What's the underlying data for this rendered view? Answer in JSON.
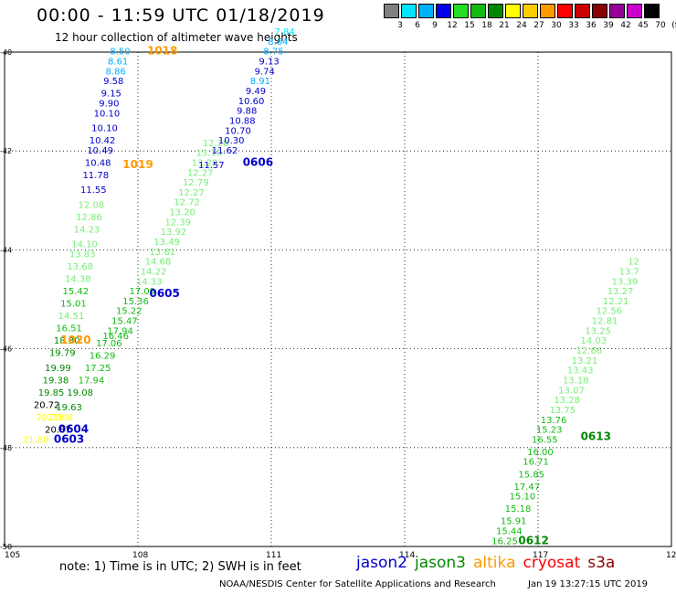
{
  "header": {
    "title": "00:00 - 11:59 UTC 01/18/2019",
    "subtitle": "12 hour collection of altimeter wave heights"
  },
  "colorbar": {
    "colors": [
      "#808080",
      "#00e5ff",
      "#00b0ff",
      "#0000ee",
      "#22dd22",
      "#11bb11",
      "#008800",
      "#ffff00",
      "#ffcc00",
      "#ff9900",
      "#ff0000",
      "#cc0000",
      "#880000",
      "#990099",
      "#cc00cc",
      "#000000"
    ],
    "ticks": [
      "3",
      "6",
      "9",
      "12",
      "15",
      "18",
      "21",
      "24",
      "27",
      "30",
      "33",
      "36",
      "39",
      "42",
      "45",
      "70",
      "(ft)"
    ]
  },
  "footer": {
    "note": "note: 1) Time is in UTC; 2) SWH is in feet",
    "credit": "NOAA/NESDIS Center for Satellite Applications and Research",
    "timestamp": "Jan 19 13:27:15 UTC 2019"
  },
  "legend": [
    {
      "name": "jason2",
      "color": "#0000cc"
    },
    {
      "name": "jason3",
      "color": "#008800"
    },
    {
      "name": "altika",
      "color": "#ff9900"
    },
    {
      "name": "cryosat",
      "color": "#ff0000"
    },
    {
      "name": "s3a",
      "color": "#8b0000"
    }
  ],
  "chart_data": {
    "type": "scatter",
    "xlim": [
      105,
      120
    ],
    "ylim": [
      -50,
      -40
    ],
    "x_ticks": [
      105,
      108,
      111,
      114,
      117,
      120
    ],
    "y_ticks": [
      -40,
      -42,
      -44,
      -46,
      -48,
      -50
    ],
    "grid": true,
    "labels": [
      {
        "text": "0603",
        "x": 106.45,
        "y": -47.9,
        "color": "#0000cc"
      },
      {
        "text": "0604",
        "x": 106.55,
        "y": -47.7,
        "color": "#0000cc"
      },
      {
        "text": "1020",
        "x": 106.6,
        "y": -45.9,
        "color": "#ff9900"
      },
      {
        "text": "0605",
        "x": 108.6,
        "y": -44.95,
        "color": "#0000cc"
      },
      {
        "text": "1019",
        "x": 108.0,
        "y": -42.35,
        "color": "#ff9900"
      },
      {
        "text": "0606",
        "x": 110.7,
        "y": -42.3,
        "color": "#0000cc"
      },
      {
        "text": "1018",
        "x": 108.55,
        "y": -40.05,
        "color": "#ff9900"
      },
      {
        "text": "0613",
        "x": 118.3,
        "y": -47.85,
        "color": "#008800"
      },
      {
        "text": "0612",
        "x": 116.9,
        "y": -49.95,
        "color": "#008800"
      }
    ],
    "series": [
      {
        "name": "altika",
        "points": [
          {
            "x": 107.6,
            "y": -40.05,
            "v": "8.50",
            "color": "#00b0ff"
          },
          {
            "x": 107.55,
            "y": -40.25,
            "v": "8.61",
            "color": "#00b0ff"
          },
          {
            "x": 107.5,
            "y": -40.45,
            "v": "8.86",
            "color": "#00b0ff"
          },
          {
            "x": 107.45,
            "y": -40.65,
            "v": "9.58",
            "color": "#0000cc"
          },
          {
            "x": 107.4,
            "y": -40.9,
            "v": "9.15",
            "color": "#0000cc"
          },
          {
            "x": 107.35,
            "y": -41.1,
            "v": "9.90",
            "color": "#0000cc"
          },
          {
            "x": 107.3,
            "y": -41.3,
            "v": "10.10",
            "color": "#0000cc"
          },
          {
            "x": 107.25,
            "y": -41.6,
            "v": "10.10",
            "color": "#0000cc"
          },
          {
            "x": 107.2,
            "y": -41.85,
            "v": "10.42",
            "color": "#0000cc"
          },
          {
            "x": 107.15,
            "y": -42.05,
            "v": "10.49",
            "color": "#0000cc"
          },
          {
            "x": 107.1,
            "y": -42.3,
            "v": "10.48",
            "color": "#0000cc"
          },
          {
            "x": 107.05,
            "y": -42.55,
            "v": "11.78",
            "color": "#0000cc"
          },
          {
            "x": 107.0,
            "y": -42.85,
            "v": "11.55",
            "color": "#0000cc"
          },
          {
            "x": 106.95,
            "y": -43.15,
            "v": "12.08",
            "color": "#77ee77"
          },
          {
            "x": 106.9,
            "y": -43.4,
            "v": "12.86",
            "color": "#77ee77"
          },
          {
            "x": 106.85,
            "y": -43.65,
            "v": "14.23",
            "color": "#77ee77"
          },
          {
            "x": 106.8,
            "y": -43.95,
            "v": "14.10",
            "color": "#77ee77"
          },
          {
            "x": 106.75,
            "y": -44.15,
            "v": "13.83",
            "color": "#77ee77"
          },
          {
            "x": 106.7,
            "y": -44.4,
            "v": "13.68",
            "color": "#77ee77"
          },
          {
            "x": 106.65,
            "y": -44.65,
            "v": "14.38",
            "color": "#77ee77"
          },
          {
            "x": 106.6,
            "y": -44.9,
            "v": "15.42",
            "color": "#11bb11"
          },
          {
            "x": 106.55,
            "y": -45.15,
            "v": "15.01",
            "color": "#11bb11"
          },
          {
            "x": 106.5,
            "y": -45.4,
            "v": "14.51",
            "color": "#77ee77"
          },
          {
            "x": 106.45,
            "y": -45.65,
            "v": "16.51",
            "color": "#11bb11"
          },
          {
            "x": 106.4,
            "y": -45.9,
            "v": "18.30",
            "color": "#008800"
          },
          {
            "x": 106.3,
            "y": -46.15,
            "v": "19.79",
            "color": "#008800"
          },
          {
            "x": 106.2,
            "y": -46.45,
            "v": "19.99",
            "color": "#008800"
          },
          {
            "x": 106.15,
            "y": -46.7,
            "v": "19.38",
            "color": "#008800"
          },
          {
            "x": 106.05,
            "y": -46.95,
            "v": "19.85",
            "color": "#008800"
          },
          {
            "x": 105.95,
            "y": -47.2,
            "v": "20.72",
            "color": "#000000"
          },
          {
            "x": 106.0,
            "y": -47.45,
            "v": "20.73",
            "color": "#ffff00"
          },
          {
            "x": 106.2,
            "y": -47.7,
            "v": "20.87",
            "color": "#000000"
          },
          {
            "x": 105.7,
            "y": -47.9,
            "v": "21.80",
            "color": "#ffff00"
          }
        ]
      },
      {
        "name": "jason3",
        "points": [
          {
            "x": 106.45,
            "y": -47.25,
            "v": "19.63",
            "color": "#008800"
          },
          {
            "x": 106.25,
            "y": -47.45,
            "v": "21.08",
            "color": "#ffff00"
          },
          {
            "x": 106.7,
            "y": -46.95,
            "v": "19.08",
            "color": "#008800"
          },
          {
            "x": 106.95,
            "y": -46.7,
            "v": "17.94",
            "color": "#11bb11"
          },
          {
            "x": 107.1,
            "y": -46.45,
            "v": "17.25",
            "color": "#11bb11"
          },
          {
            "x": 107.2,
            "y": -46.2,
            "v": "16.29",
            "color": "#11bb11"
          },
          {
            "x": 107.35,
            "y": -45.95,
            "v": "17.06",
            "color": "#11bb11"
          },
          {
            "x": 107.5,
            "y": -45.8,
            "v": "16.46",
            "color": "#11bb11"
          },
          {
            "x": 107.6,
            "y": -45.7,
            "v": "17.94",
            "color": "#11bb11"
          },
          {
            "x": 107.7,
            "y": -45.5,
            "v": "15.47",
            "color": "#11bb11"
          },
          {
            "x": 107.8,
            "y": -45.3,
            "v": "15.22",
            "color": "#11bb11"
          },
          {
            "x": 107.95,
            "y": -45.1,
            "v": "15.36",
            "color": "#11bb11"
          },
          {
            "x": 108.1,
            "y": -44.9,
            "v": "17.09",
            "color": "#11bb11"
          },
          {
            "x": 108.25,
            "y": -44.7,
            "v": "14.33",
            "color": "#77ee77"
          },
          {
            "x": 108.35,
            "y": -44.5,
            "v": "14.22",
            "color": "#77ee77"
          },
          {
            "x": 108.45,
            "y": -44.3,
            "v": "14.68",
            "color": "#77ee77"
          },
          {
            "x": 108.55,
            "y": -44.1,
            "v": "13.81",
            "color": "#77ee77"
          },
          {
            "x": 108.65,
            "y": -43.9,
            "v": "13.49",
            "color": "#77ee77"
          },
          {
            "x": 108.8,
            "y": -43.7,
            "v": "13.92",
            "color": "#77ee77"
          },
          {
            "x": 108.9,
            "y": -43.5,
            "v": "12.39",
            "color": "#77ee77"
          },
          {
            "x": 109.0,
            "y": -43.3,
            "v": "13.20",
            "color": "#77ee77"
          },
          {
            "x": 109.1,
            "y": -43.1,
            "v": "12.72",
            "color": "#77ee77"
          },
          {
            "x": 109.2,
            "y": -42.9,
            "v": "12.27",
            "color": "#77ee77"
          },
          {
            "x": 109.3,
            "y": -42.7,
            "v": "12.79",
            "color": "#77ee77"
          },
          {
            "x": 109.4,
            "y": -42.5,
            "v": "12.27",
            "color": "#77ee77"
          },
          {
            "x": 109.5,
            "y": -42.3,
            "v": "13.28",
            "color": "#77ee77"
          },
          {
            "x": 109.6,
            "y": -42.1,
            "v": "13.10",
            "color": "#77ee77"
          },
          {
            "x": 109.75,
            "y": -41.9,
            "v": "12.28",
            "color": "#77ee77"
          }
        ]
      },
      {
        "name": "jason2",
        "points": [
          {
            "x": 109.65,
            "y": -42.35,
            "v": "11.57",
            "color": "#0000cc"
          },
          {
            "x": 109.95,
            "y": -42.05,
            "v": "11.62",
            "color": "#0000cc"
          },
          {
            "x": 110.1,
            "y": -41.85,
            "v": "10.30",
            "color": "#0000cc"
          },
          {
            "x": 110.25,
            "y": -41.65,
            "v": "10.70",
            "color": "#0000cc"
          },
          {
            "x": 110.35,
            "y": -41.45,
            "v": "10.88",
            "color": "#0000cc"
          },
          {
            "x": 110.45,
            "y": -41.25,
            "v": "9.88",
            "color": "#0000cc"
          },
          {
            "x": 110.55,
            "y": -41.05,
            "v": "10.60",
            "color": "#0000cc"
          },
          {
            "x": 110.65,
            "y": -40.85,
            "v": "9.49",
            "color": "#0000cc"
          },
          {
            "x": 110.75,
            "y": -40.65,
            "v": "8.91",
            "color": "#00b0ff"
          },
          {
            "x": 110.85,
            "y": -40.45,
            "v": "9.74",
            "color": "#0000cc"
          },
          {
            "x": 110.95,
            "y": -40.25,
            "v": "9.13",
            "color": "#0000cc"
          },
          {
            "x": 111.05,
            "y": -40.05,
            "v": "8.75",
            "color": "#00b0ff"
          },
          {
            "x": 111.15,
            "y": -39.85,
            "v": "8.64",
            "color": "#00b0ff"
          },
          {
            "x": 111.3,
            "y": -39.65,
            "v": "7.84",
            "color": "#00e5ff"
          }
        ]
      },
      {
        "name": "jason3 east",
        "points": [
          {
            "x": 116.25,
            "y": -49.95,
            "v": "16.25",
            "color": "#11bb11"
          },
          {
            "x": 116.35,
            "y": -49.75,
            "v": "15.44",
            "color": "#11bb11"
          },
          {
            "x": 116.45,
            "y": -49.55,
            "v": "15.91",
            "color": "#11bb11"
          },
          {
            "x": 116.55,
            "y": -49.3,
            "v": "15.18",
            "color": "#11bb11"
          },
          {
            "x": 116.65,
            "y": -49.05,
            "v": "15.10",
            "color": "#11bb11"
          },
          {
            "x": 116.75,
            "y": -48.85,
            "v": "17.47",
            "color": "#11bb11"
          },
          {
            "x": 116.85,
            "y": -48.6,
            "v": "15.85",
            "color": "#11bb11"
          },
          {
            "x": 116.95,
            "y": -48.35,
            "v": "16.71",
            "color": "#11bb11"
          },
          {
            "x": 117.05,
            "y": -48.15,
            "v": "16.00",
            "color": "#11bb11"
          },
          {
            "x": 117.15,
            "y": -47.9,
            "v": "16.55",
            "color": "#11bb11"
          },
          {
            "x": 117.25,
            "y": -47.7,
            "v": "15.23",
            "color": "#11bb11"
          },
          {
            "x": 117.35,
            "y": -47.5,
            "v": "13.76",
            "color": "#11bb11"
          },
          {
            "x": 117.55,
            "y": -47.3,
            "v": "13.75",
            "color": "#77ee77"
          },
          {
            "x": 117.65,
            "y": -47.1,
            "v": "13.28",
            "color": "#77ee77"
          },
          {
            "x": 117.75,
            "y": -46.9,
            "v": "13.07",
            "color": "#77ee77"
          },
          {
            "x": 117.85,
            "y": -46.7,
            "v": "13.18",
            "color": "#77ee77"
          },
          {
            "x": 117.95,
            "y": -46.5,
            "v": "13.43",
            "color": "#77ee77"
          },
          {
            "x": 118.05,
            "y": -46.3,
            "v": "13.21",
            "color": "#77ee77"
          },
          {
            "x": 118.15,
            "y": -46.1,
            "v": "12.66",
            "color": "#77ee77"
          },
          {
            "x": 118.25,
            "y": -45.9,
            "v": "14.03",
            "color": "#77ee77"
          },
          {
            "x": 118.35,
            "y": -45.7,
            "v": "13.25",
            "color": "#77ee77"
          },
          {
            "x": 118.5,
            "y": -45.5,
            "v": "12.81",
            "color": "#77ee77"
          },
          {
            "x": 118.6,
            "y": -45.3,
            "v": "12.56",
            "color": "#77ee77"
          },
          {
            "x": 118.75,
            "y": -45.1,
            "v": "12.21",
            "color": "#77ee77"
          },
          {
            "x": 118.85,
            "y": -44.9,
            "v": "13.27",
            "color": "#77ee77"
          },
          {
            "x": 118.95,
            "y": -44.7,
            "v": "13.39",
            "color": "#77ee77"
          },
          {
            "x": 119.05,
            "y": -44.5,
            "v": "13.7",
            "color": "#77ee77"
          },
          {
            "x": 119.15,
            "y": -44.3,
            "v": "12",
            "color": "#77ee77"
          }
        ]
      }
    ]
  }
}
